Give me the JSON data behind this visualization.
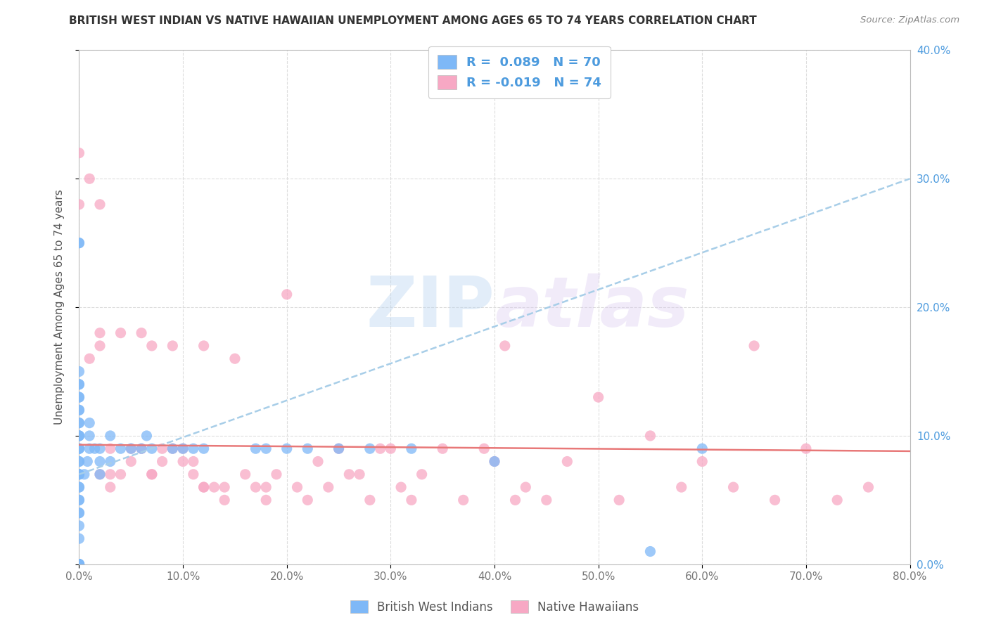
{
  "title": "BRITISH WEST INDIAN VS NATIVE HAWAIIAN UNEMPLOYMENT AMONG AGES 65 TO 74 YEARS CORRELATION CHART",
  "source": "Source: ZipAtlas.com",
  "ylabel": "Unemployment Among Ages 65 to 74 years",
  "legend_label1": "British West Indians",
  "legend_label2": "Native Hawaiians",
  "r1": "0.089",
  "n1": "70",
  "r2": "-0.019",
  "n2": "74",
  "color_bwi": "#7EB8F7",
  "color_nh": "#F7A8C4",
  "color_line_bwi": "#A8CEE8",
  "color_line_nh": "#E87878",
  "watermark": "ZIPatlas",
  "background": "#FFFFFF",
  "grid_color": "#DDDDDD",
  "xlim": [
    0.0,
    0.8
  ],
  "ylim": [
    0.0,
    0.4
  ],
  "xticks": [
    0.0,
    0.1,
    0.2,
    0.3,
    0.4,
    0.5,
    0.6,
    0.7,
    0.8
  ],
  "yticks": [
    0.0,
    0.1,
    0.2,
    0.3,
    0.4
  ],
  "bwi_x": [
    0.0,
    0.0,
    0.0,
    0.0,
    0.0,
    0.0,
    0.0,
    0.0,
    0.0,
    0.0,
    0.0,
    0.0,
    0.0,
    0.0,
    0.0,
    0.0,
    0.0,
    0.0,
    0.0,
    0.0,
    0.0,
    0.0,
    0.0,
    0.0,
    0.0,
    0.0,
    0.0,
    0.0,
    0.0,
    0.0,
    0.0,
    0.0,
    0.0,
    0.0,
    0.0,
    0.0,
    0.0,
    0.0,
    0.0,
    0.0,
    0.005,
    0.008,
    0.01,
    0.01,
    0.01,
    0.015,
    0.02,
    0.02,
    0.02,
    0.03,
    0.03,
    0.04,
    0.05,
    0.06,
    0.065,
    0.07,
    0.09,
    0.1,
    0.11,
    0.12,
    0.17,
    0.18,
    0.2,
    0.22,
    0.25,
    0.28,
    0.32,
    0.4,
    0.55,
    0.6
  ],
  "bwi_y": [
    0.0,
    0.0,
    0.0,
    0.0,
    0.0,
    0.0,
    0.0,
    0.0,
    0.0,
    0.0,
    0.02,
    0.03,
    0.04,
    0.04,
    0.05,
    0.05,
    0.06,
    0.06,
    0.07,
    0.07,
    0.07,
    0.08,
    0.08,
    0.09,
    0.09,
    0.09,
    0.1,
    0.1,
    0.1,
    0.11,
    0.11,
    0.12,
    0.12,
    0.13,
    0.14,
    0.15,
    0.25,
    0.14,
    0.13,
    0.25,
    0.07,
    0.08,
    0.09,
    0.1,
    0.11,
    0.09,
    0.07,
    0.08,
    0.09,
    0.08,
    0.1,
    0.09,
    0.09,
    0.09,
    0.1,
    0.09,
    0.09,
    0.09,
    0.09,
    0.09,
    0.09,
    0.09,
    0.09,
    0.09,
    0.09,
    0.09,
    0.09,
    0.08,
    0.01,
    0.09
  ],
  "nh_x": [
    0.0,
    0.0,
    0.01,
    0.01,
    0.02,
    0.02,
    0.02,
    0.02,
    0.03,
    0.03,
    0.03,
    0.04,
    0.04,
    0.05,
    0.05,
    0.06,
    0.06,
    0.07,
    0.07,
    0.07,
    0.08,
    0.08,
    0.09,
    0.09,
    0.1,
    0.1,
    0.11,
    0.11,
    0.12,
    0.12,
    0.12,
    0.13,
    0.14,
    0.14,
    0.15,
    0.16,
    0.17,
    0.18,
    0.18,
    0.19,
    0.2,
    0.21,
    0.22,
    0.23,
    0.24,
    0.25,
    0.26,
    0.27,
    0.28,
    0.29,
    0.3,
    0.31,
    0.32,
    0.33,
    0.35,
    0.37,
    0.39,
    0.4,
    0.41,
    0.42,
    0.43,
    0.45,
    0.47,
    0.5,
    0.52,
    0.55,
    0.58,
    0.6,
    0.63,
    0.65,
    0.67,
    0.7,
    0.73,
    0.76
  ],
  "nh_y": [
    0.32,
    0.28,
    0.3,
    0.16,
    0.28,
    0.18,
    0.17,
    0.07,
    0.09,
    0.07,
    0.06,
    0.18,
    0.07,
    0.09,
    0.08,
    0.18,
    0.09,
    0.07,
    0.07,
    0.17,
    0.08,
    0.09,
    0.09,
    0.17,
    0.09,
    0.08,
    0.08,
    0.07,
    0.06,
    0.06,
    0.17,
    0.06,
    0.05,
    0.06,
    0.16,
    0.07,
    0.06,
    0.06,
    0.05,
    0.07,
    0.21,
    0.06,
    0.05,
    0.08,
    0.06,
    0.09,
    0.07,
    0.07,
    0.05,
    0.09,
    0.09,
    0.06,
    0.05,
    0.07,
    0.09,
    0.05,
    0.09,
    0.08,
    0.17,
    0.05,
    0.06,
    0.05,
    0.08,
    0.13,
    0.05,
    0.1,
    0.06,
    0.08,
    0.06,
    0.17,
    0.05,
    0.09,
    0.05,
    0.06
  ],
  "bwi_trend_x": [
    0.0,
    0.8
  ],
  "bwi_trend_y_start": 0.07,
  "bwi_trend_y_end": 0.3,
  "nh_trend_x": [
    0.0,
    0.8
  ],
  "nh_trend_y_start": 0.093,
  "nh_trend_y_end": 0.088
}
